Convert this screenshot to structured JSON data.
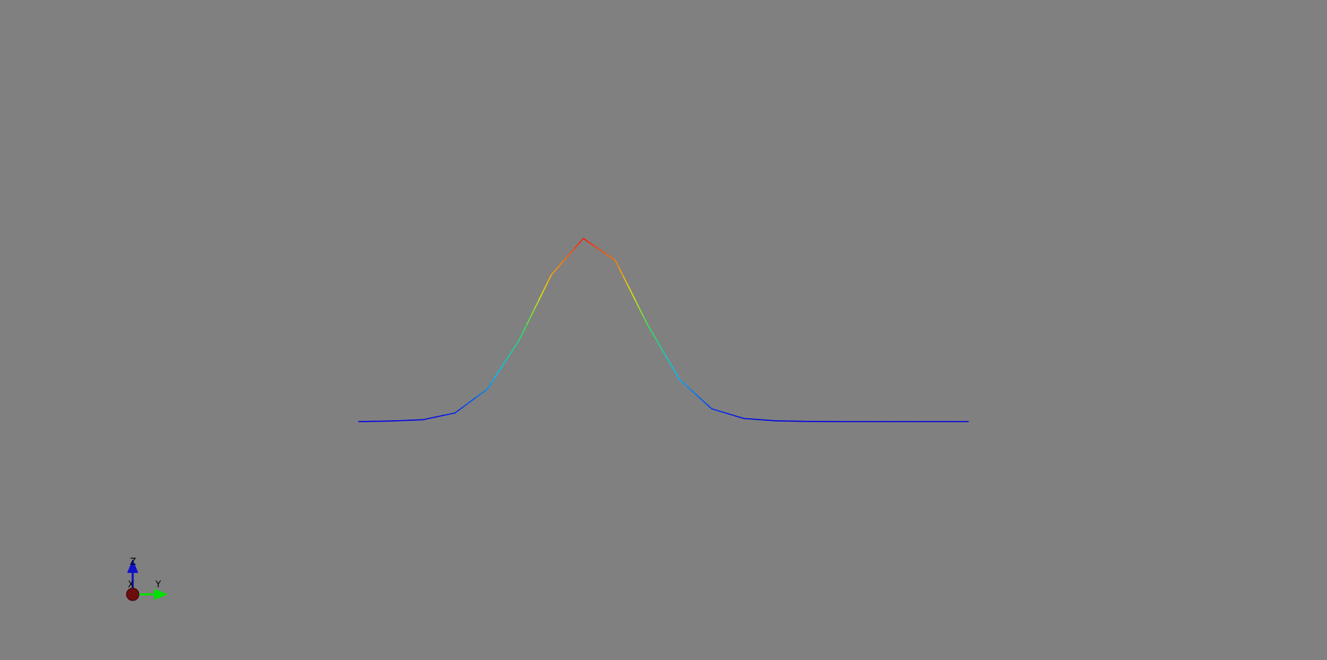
{
  "viewer": {
    "background_color": "#808080",
    "colormap": "rainbow",
    "curve": {
      "x": [
        0,
        1,
        2,
        3,
        4,
        5,
        6,
        7,
        8,
        9,
        10,
        11,
        12,
        13,
        14,
        15,
        16,
        17,
        18,
        19
      ],
      "z": [
        0.0,
        0.003,
        0.01,
        0.047,
        0.176,
        0.444,
        0.8,
        1.0,
        0.88,
        0.53,
        0.23,
        0.07,
        0.017,
        0.004,
        0.001,
        0.0,
        0.0,
        0.0,
        0.0,
        0.0
      ]
    },
    "orientation_axes": {
      "x_label": "X",
      "y_label": "Y",
      "z_label": "Z",
      "x_color": "#6b0d0d",
      "y_color": "#00e000",
      "z_color": "#1010c8"
    }
  }
}
